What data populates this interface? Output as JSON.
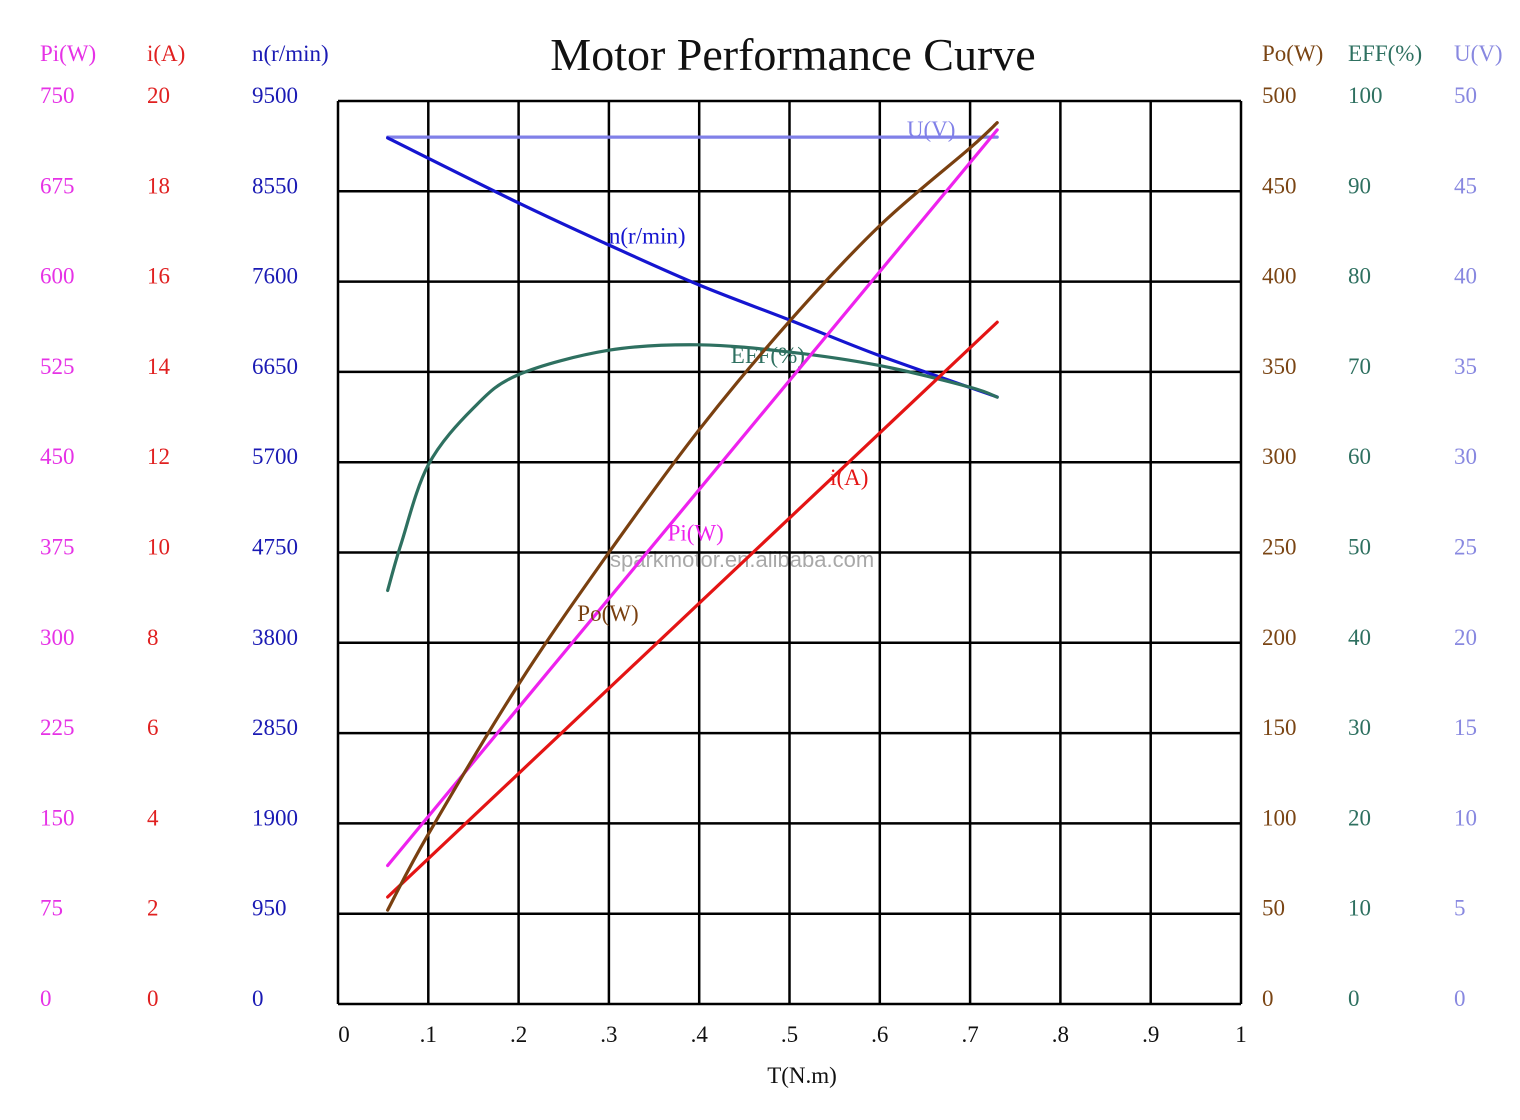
{
  "chart_data": {
    "type": "line",
    "title": "Motor Performance Curve",
    "xlabel": "T(N.m)",
    "xlim": [
      0,
      1
    ],
    "x_ticks": [
      "0",
      ".1",
      ".2",
      ".3",
      ".4",
      ".5",
      ".6",
      ".7",
      ".8",
      ".9",
      "1"
    ],
    "grid": true,
    "watermark": "sparkmotor.en.alibaba.com",
    "axes": [
      {
        "id": "pi",
        "side": "left",
        "label": "Pi(W)",
        "ticks": [
          "0",
          "75",
          "150",
          "225",
          "300",
          "375",
          "450",
          "525",
          "600",
          "675",
          "750"
        ],
        "range": [
          0,
          750
        ],
        "color": "#e632e6"
      },
      {
        "id": "i",
        "side": "left",
        "label": "i(A)",
        "ticks": [
          "0",
          "2",
          "4",
          "6",
          "8",
          "10",
          "12",
          "14",
          "16",
          "18",
          "20"
        ],
        "range": [
          0,
          20
        ],
        "color": "#e02020"
      },
      {
        "id": "n",
        "side": "left",
        "label": "n(r/min)",
        "ticks": [
          "0",
          "950",
          "1900",
          "2850",
          "3800",
          "4750",
          "5700",
          "6650",
          "7600",
          "8550",
          "9500"
        ],
        "range": [
          0,
          9500
        ],
        "color": "#1a1ab4"
      },
      {
        "id": "po",
        "side": "right",
        "label": "Po(W)",
        "ticks": [
          "0",
          "50",
          "100",
          "150",
          "200",
          "250",
          "300",
          "350",
          "400",
          "450",
          "500"
        ],
        "range": [
          0,
          500
        ],
        "color": "#7a4514"
      },
      {
        "id": "eff",
        "side": "right",
        "label": "EFF(%)",
        "ticks": [
          "0",
          "10",
          "20",
          "30",
          "40",
          "50",
          "60",
          "70",
          "80",
          "90",
          "100"
        ],
        "range": [
          0,
          100
        ],
        "color": "#2e7060"
      },
      {
        "id": "u",
        "side": "right",
        "label": "U(V)",
        "ticks": [
          "0",
          "5",
          "10",
          "15",
          "20",
          "25",
          "30",
          "35",
          "40",
          "45",
          "50"
        ],
        "range": [
          0,
          50
        ],
        "color": "#8888e0"
      }
    ],
    "series": [
      {
        "name": "U(V)",
        "axis": "u",
        "color": "#8080e8",
        "label_at": [
          0.63,
          48
        ],
        "x": [
          0.055,
          0.73
        ],
        "y": [
          48,
          48
        ]
      },
      {
        "name": "n(r/min)",
        "axis": "n",
        "color": "#1515d0",
        "label_at": [
          0.3,
          8000
        ],
        "x": [
          0.055,
          0.2,
          0.3,
          0.4,
          0.5,
          0.6,
          0.73
        ],
        "y": [
          9111,
          8427,
          7985,
          7564,
          7196,
          6820,
          6386
        ]
      },
      {
        "name": "EFF(%)",
        "axis": "eff",
        "color": "#2e7060",
        "label_at": [
          0.435,
          71
        ],
        "x": [
          0.055,
          0.07,
          0.1,
          0.15,
          0.2,
          0.3,
          0.4,
          0.5,
          0.6,
          0.7,
          0.73
        ],
        "y": [
          45.8,
          51,
          59.7,
          66,
          69.7,
          72.4,
          73.0,
          72.2,
          70.7,
          68.3,
          67.2
        ]
      },
      {
        "name": "Pi(W)",
        "axis": "pi",
        "color": "#ee22ee",
        "label_at": [
          0.365,
          350
        ],
        "x": [
          0.055,
          0.73
        ],
        "y": [
          115,
          726
        ]
      },
      {
        "name": "i(A)",
        "axis": "i",
        "color": "#e41414",
        "label_at": [
          0.545,
          11.5
        ],
        "x": [
          0.055,
          0.73
        ],
        "y": [
          2.37,
          15.1
        ]
      },
      {
        "name": "Po(W)",
        "axis": "po",
        "color": "#7a4010",
        "label_at": [
          0.265,
          212
        ],
        "x": [
          0.055,
          0.1,
          0.2,
          0.3,
          0.4,
          0.5,
          0.6,
          0.7,
          0.73
        ],
        "y": [
          52,
          94,
          177,
          250,
          318,
          378,
          431,
          474,
          488
        ]
      }
    ]
  }
}
